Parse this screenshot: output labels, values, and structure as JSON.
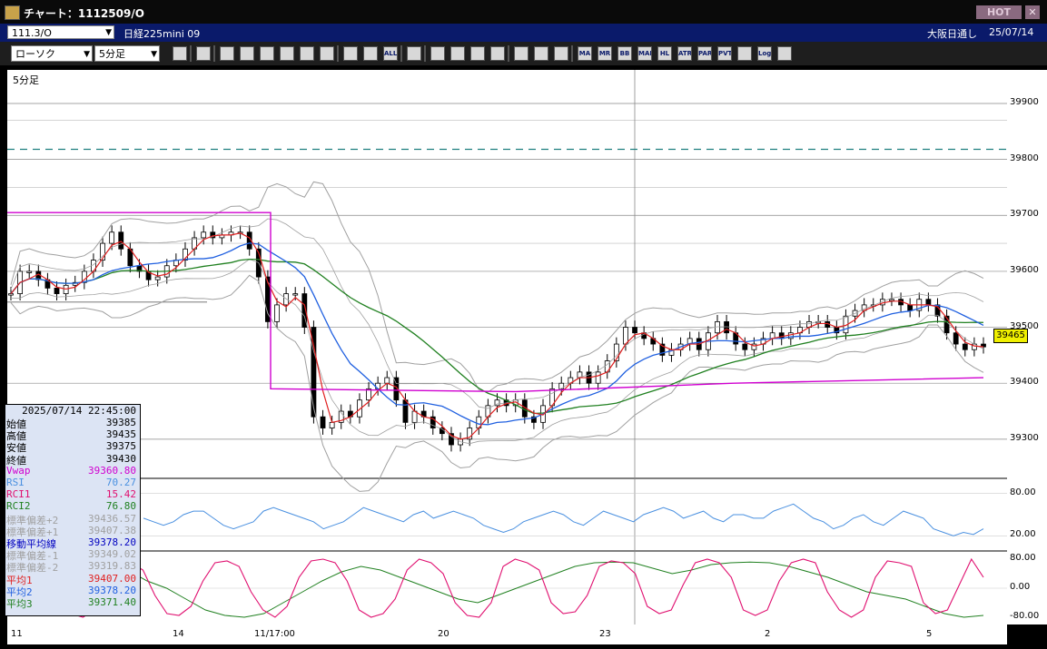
{
  "window": {
    "title": "チャート：1112509/O",
    "hot_label": "HOT",
    "close_label": "✕"
  },
  "infobar": {
    "symbol_code": "111.3/O",
    "symbol_name": "日経225mini 09",
    "exchange": "大阪日通し",
    "date": "25/07/14"
  },
  "toolbar": {
    "chart_type": "ローソク",
    "interval": "5分足",
    "buttons": [
      "search-icon",
      "layout-icon",
      "draw-icon",
      "line-icon",
      "cursor-icon",
      "undo-icon",
      "list-icon",
      "delete-icon",
      "split-icon",
      "split2-icon",
      "ALL",
      "bell-icon",
      "zoom-icon",
      "bar-icon",
      "swap-icon",
      "gray-icon",
      "grid-icon",
      "wrench-icon",
      "palette-icon",
      "MA",
      "MR",
      "BB",
      "MAE",
      "HL",
      "ATR",
      "PAR",
      "PVT",
      "window-icon",
      "Log",
      "exit-icon"
    ]
  },
  "chart": {
    "period_label": "5分足",
    "y_labels": [
      "39900",
      "39800",
      "39700",
      "39600",
      "39500",
      "39400",
      "39300"
    ],
    "rsi_labels": [
      "80.00",
      "20.00"
    ],
    "rci_labels": [
      "80.00",
      "0.00",
      "-80.00"
    ],
    "x_labels": [
      "11",
      "14",
      "11/17:00",
      "20",
      "23",
      "2",
      "5"
    ],
    "last_price": "39465",
    "dashed_level": 39818,
    "colors": {
      "up": "#ffffff",
      "down": "#000000",
      "ma1": "#e02020",
      "ma2": "#2060e0",
      "ma3": "#208020",
      "vwap": "#d000d0",
      "bb": "#a0a0a0",
      "rsi": "#4a90e0",
      "rci1": "#e01070",
      "rci2": "#208020"
    }
  },
  "chart_data": {
    "type": "candlestick",
    "price_range": [
      39230,
      39960
    ],
    "candles_close": [
      39560,
      39600,
      39600,
      39585,
      39570,
      39560,
      39575,
      39580,
      39600,
      39620,
      39650,
      39670,
      39640,
      39610,
      39600,
      39585,
      39590,
      39610,
      39620,
      39640,
      39660,
      39670,
      39660,
      39665,
      39670,
      39670,
      39640,
      39590,
      39510,
      39540,
      39560,
      39560,
      39500,
      39340,
      39320,
      39330,
      39350,
      39340,
      39370,
      39390,
      39400,
      39410,
      39370,
      39330,
      39350,
      39340,
      39320,
      39310,
      39290,
      39300,
      39320,
      39340,
      39360,
      39370,
      39360,
      39370,
      39340,
      39330,
      39360,
      39390,
      39400,
      39410,
      39420,
      39400,
      39420,
      39440,
      39470,
      39500,
      39490,
      39480,
      39470,
      39450,
      39460,
      39470,
      39480,
      39460,
      39490,
      39510,
      39490,
      39470,
      39460,
      39470,
      39480,
      39490,
      39480,
      39490,
      39500,
      39510,
      39510,
      39500,
      39490,
      39520,
      39530,
      39540,
      39540,
      39550,
      39550,
      39540,
      39530,
      39550,
      39540,
      39520,
      39490,
      39470,
      39460,
      39470,
      39465
    ],
    "rsi": [
      45,
      40,
      35,
      40,
      50,
      55,
      55,
      45,
      35,
      30,
      35,
      40,
      55,
      60,
      55,
      50,
      45,
      40,
      30,
      35,
      40,
      50,
      60,
      55,
      50,
      45,
      40,
      50,
      55,
      45,
      50,
      55,
      50,
      45,
      35,
      30,
      25,
      30,
      40,
      45,
      50,
      55,
      50,
      40,
      35,
      45,
      55,
      50,
      45,
      40,
      50,
      55,
      60,
      55,
      45,
      50,
      55,
      45,
      40,
      50,
      50,
      45,
      45,
      55,
      60,
      65,
      55,
      45,
      40,
      30,
      35,
      45,
      50,
      40,
      35,
      45,
      55,
      50,
      45,
      30,
      25,
      20,
      25,
      22,
      30
    ],
    "rci1": [
      0,
      60,
      70,
      55,
      -40,
      -70,
      -80,
      -60,
      60,
      80,
      70,
      50,
      -20,
      -70,
      -75,
      -50,
      20,
      70,
      75,
      60,
      -10,
      -60,
      -80,
      -50,
      30,
      75,
      80,
      70,
      20,
      -60,
      -80,
      -70,
      -30,
      50,
      80,
      70,
      40,
      -40,
      -75,
      -80,
      -40,
      60,
      80,
      70,
      50,
      -40,
      -70,
      -65,
      -20,
      60,
      75,
      70,
      40,
      -50,
      -70,
      -60,
      10,
      70,
      80,
      70,
      30,
      -60,
      -75,
      -60,
      20,
      70,
      80,
      70,
      -10,
      -60,
      -80,
      -60,
      30,
      75,
      70,
      60,
      -40,
      -70,
      -60,
      10,
      80,
      30
    ],
    "rci2": [
      -20,
      0,
      30,
      60,
      75,
      70,
      50,
      20,
      0,
      -30,
      -60,
      -75,
      -80,
      -70,
      -40,
      -10,
      20,
      45,
      60,
      50,
      30,
      10,
      -10,
      -30,
      -40,
      -20,
      0,
      20,
      40,
      60,
      70,
      72,
      70,
      55,
      40,
      50,
      65,
      70,
      72,
      70,
      60,
      45,
      30,
      10,
      -10,
      -20,
      -30,
      -50,
      -70,
      -80,
      -75
    ]
  },
  "data_panel": {
    "timestamp": "2025/07/14 22:45:00",
    "rows": [
      {
        "label": "始値",
        "value": "39385",
        "color": "#000000"
      },
      {
        "label": "高値",
        "value": "39435",
        "color": "#000000"
      },
      {
        "label": "安値",
        "value": "39375",
        "color": "#000000"
      },
      {
        "label": "終値",
        "value": "39430",
        "color": "#000000"
      },
      {
        "label": "Vwap",
        "value": "39360.80",
        "color": "#d000d0"
      },
      {
        "label": "RSI",
        "value": "70.27",
        "color": "#4a90e0"
      },
      {
        "label": "RCI1",
        "value": "15.42",
        "color": "#e01070"
      },
      {
        "label": "RCI2",
        "value": "76.80",
        "color": "#208020"
      },
      {
        "label": "標準偏差+2",
        "value": "39436.57",
        "color": "#a0a0a0"
      },
      {
        "label": "標準偏差+1",
        "value": "39407.38",
        "color": "#a0a0a0"
      },
      {
        "label": "移動平均線",
        "value": "39378.20",
        "color": "#0000c0"
      },
      {
        "label": "標準偏差-1",
        "value": "39349.02",
        "color": "#a0a0a0"
      },
      {
        "label": "標準偏差-2",
        "value": "39319.83",
        "color": "#a0a0a0"
      },
      {
        "label": "平均1",
        "value": "39407.00",
        "color": "#e02020"
      },
      {
        "label": "平均2",
        "value": "39378.20",
        "color": "#2060e0"
      },
      {
        "label": "平均3",
        "value": "39371.40",
        "color": "#208020"
      }
    ]
  }
}
